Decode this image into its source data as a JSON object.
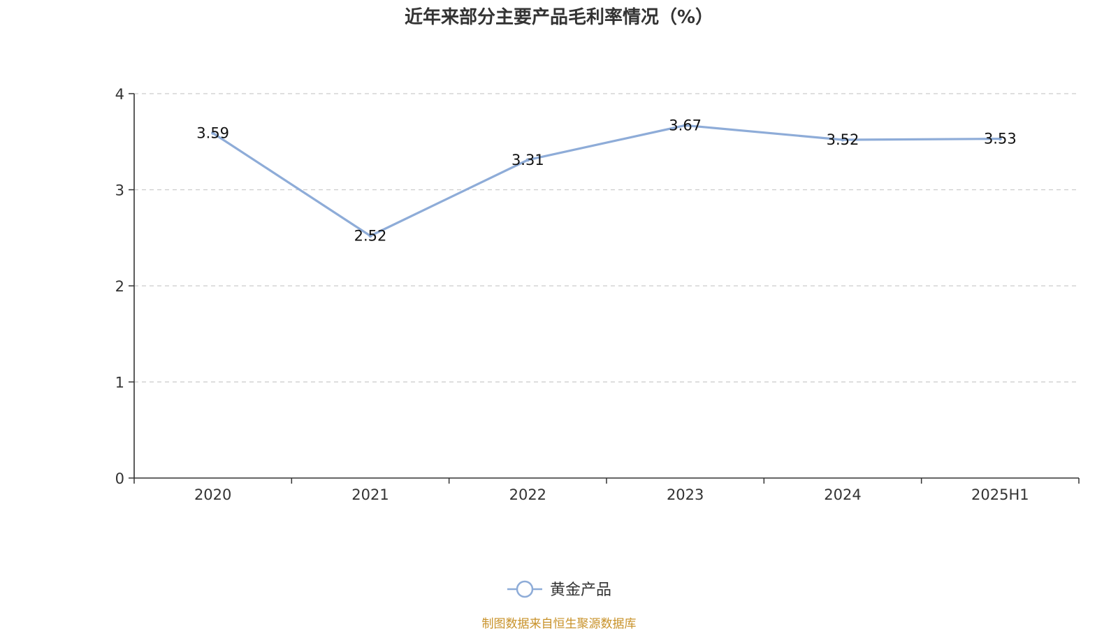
{
  "chart_data": {
    "type": "line",
    "title": "近年来部分主要产品毛利率情况（%）",
    "categories": [
      "2020",
      "2021",
      "2022",
      "2023",
      "2024",
      "2025H1"
    ],
    "series": [
      {
        "name": "黄金产品",
        "values": [
          3.59,
          2.52,
          3.31,
          3.67,
          3.52,
          3.53
        ],
        "color": "#8eacd8"
      }
    ],
    "y_ticks": [
      "0",
      "1",
      "2",
      "3",
      "4"
    ],
    "ylim": [
      0,
      4
    ],
    "xlabel": "",
    "ylabel": "",
    "grid": true,
    "legend_position": "bottom-center"
  },
  "source_note": "制图数据来自恒生聚源数据库",
  "colors": {
    "line": "#8eacd8",
    "axis": "#333333",
    "grid": "#cccccc",
    "source": "#c8922a"
  }
}
